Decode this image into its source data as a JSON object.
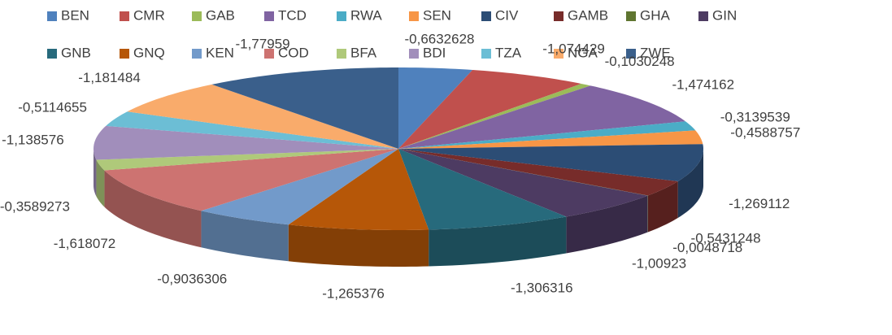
{
  "chart_data": {
    "type": "pie3d",
    "categories": [
      "BEN",
      "CMR",
      "GAB",
      "TCD",
      "RWA",
      "SEN",
      "CIV",
      "GAMB",
      "GHA",
      "GIN",
      "GNB",
      "GNQ",
      "KEN",
      "COD",
      "BFA",
      "BDI",
      "TZA",
      "NGA",
      "ZWE"
    ],
    "values": [
      -0.6632628,
      -1.074429,
      -0.1030248,
      -1.474162,
      -0.3139539,
      -0.4588757,
      -1.269112,
      -0.5431248,
      -0.0048718,
      -1.00923,
      -1.306316,
      -1.265376,
      -0.9036306,
      -1.618072,
      -0.3589273,
      -1.138576,
      -0.5114655,
      -1.181484,
      -1.77959
    ],
    "value_labels": [
      "-0,6632628",
      "-1,074429",
      "-0,1030248",
      "-1,474162",
      "-0,3139539",
      "-0,4588757",
      "-1,269112",
      "-0,5431248",
      "-0,0048718",
      "-1,00923",
      "-1,306316",
      "-1,265376",
      "-0,9036306",
      "-1,618072",
      "-0,3589273",
      "-1,138576",
      "-0,5114655",
      "-1,181484",
      "-1,77959"
    ],
    "colors": [
      "#4F81BD",
      "#C0504D",
      "#9BBB59",
      "#8064A2",
      "#4BACC6",
      "#F79646",
      "#2C4D75",
      "#772C2A",
      "#5F7530",
      "#4D3B62",
      "#276A7C",
      "#B65708",
      "#729ACA",
      "#CD7371",
      "#AFC97A",
      "#A18EBB",
      "#6CBED5",
      "#F9AB6B",
      "#3A5F8B"
    ],
    "legend": "top"
  }
}
